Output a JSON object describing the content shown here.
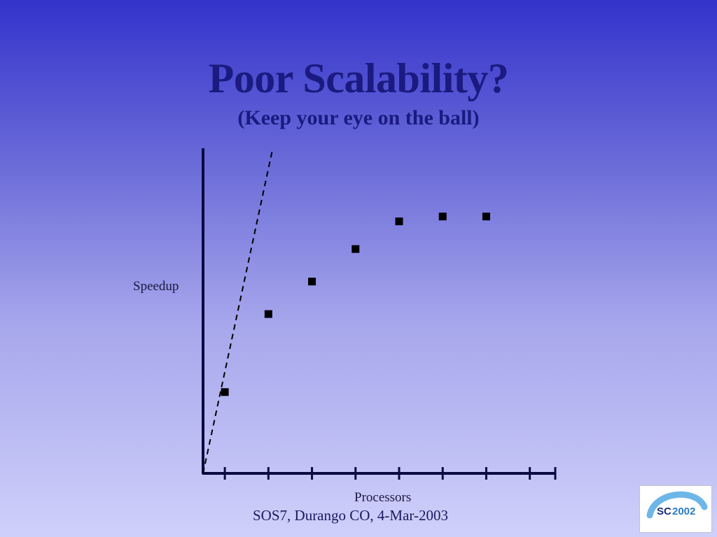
{
  "slide": {
    "title": "Poor Scalability?",
    "subtitle": "(Keep your eye on the ball)",
    "footer": "SOS7, Durango CO, 4-Mar-2003",
    "logo": {
      "text_sc": "SC",
      "text_year": "2002",
      "colors": {
        "sc": "#1b2d7a",
        "year": "#2a7cc7",
        "swoosh": "#6db7e8"
      }
    }
  },
  "colors": {
    "background_top": "#3333cc",
    "background_bottom": "#cfd0fa",
    "title": "#1a1a80",
    "axis": "#0a0a40",
    "points": "#000000"
  },
  "chart_data": {
    "type": "scatter",
    "title": "",
    "xlabel": "Processors",
    "ylabel": "Speedup",
    "x_ticks": [
      1,
      2,
      3,
      4,
      5,
      6,
      7,
      8
    ],
    "xlim": [
      0.5,
      8.6
    ],
    "ylim": [
      0,
      10
    ],
    "series": [
      {
        "values": [
          {
            "x": 1,
            "y": 2.5
          },
          {
            "x": 2,
            "y": 4.9
          },
          {
            "x": 3,
            "y": 5.9
          },
          {
            "x": 4,
            "y": 6.9
          },
          {
            "x": 5,
            "y": 7.75
          },
          {
            "x": 6,
            "y": 7.9
          },
          {
            "x": 7,
            "y": 7.9
          }
        ]
      }
    ],
    "ideal_line": {
      "style": "dashed",
      "from": {
        "x": 0.5,
        "y": 0
      },
      "to": {
        "x": 2.1,
        "y": 10
      }
    },
    "grid": false,
    "legend": "none"
  }
}
